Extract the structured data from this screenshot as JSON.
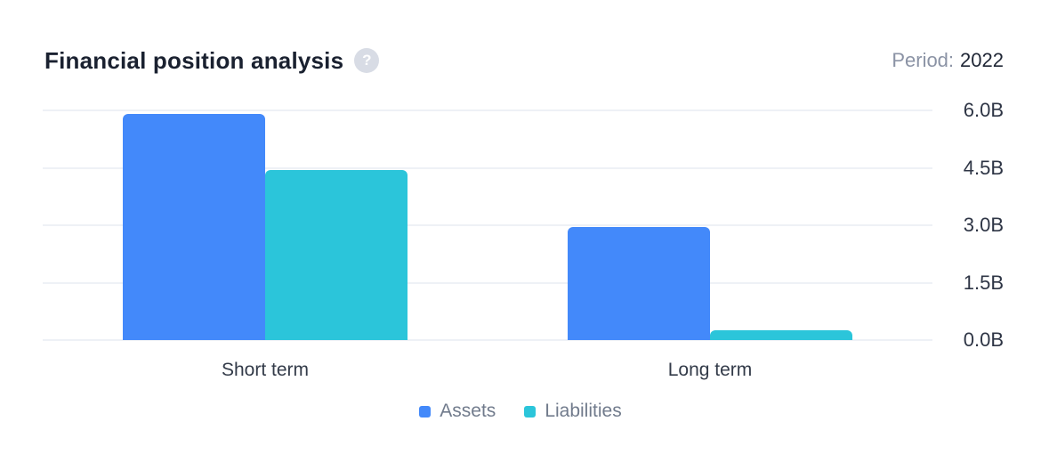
{
  "header": {
    "title": "Financial position analysis",
    "help_icon_glyph": "?",
    "period_label": "Period:",
    "period_value": "2022"
  },
  "chart_data": {
    "type": "bar",
    "title": "Financial position analysis",
    "period": "2022",
    "categories": [
      "Short term",
      "Long term"
    ],
    "series": [
      {
        "name": "Assets",
        "color": "#4389FA",
        "values": [
          5.9,
          2.95
        ]
      },
      {
        "name": "Liabilities",
        "color": "#2BC5DA",
        "values": [
          4.45,
          0.25
        ]
      }
    ],
    "unit": "B",
    "ylim": [
      0,
      6
    ],
    "yticks": [
      0,
      1.5,
      3,
      4.5,
      6
    ],
    "ytick_labels": [
      "0.0B",
      "1.5B",
      "3.0B",
      "4.5B",
      "6.0B"
    ],
    "yaxis_side": "right",
    "grid": "horizontal",
    "legend_position": "bottom"
  },
  "colors": {
    "assets": "#4389FA",
    "liabilities": "#2BC5DA",
    "gridline": "#EEF1F6",
    "title_text": "#1A2130",
    "muted_text": "#8B93A5",
    "dark_text": "#1F2635",
    "axis_text": "#2E3545",
    "category_text": "#333B49",
    "legend_text": "#717B8C",
    "help_icon_bg": "#D8DCE5"
  }
}
